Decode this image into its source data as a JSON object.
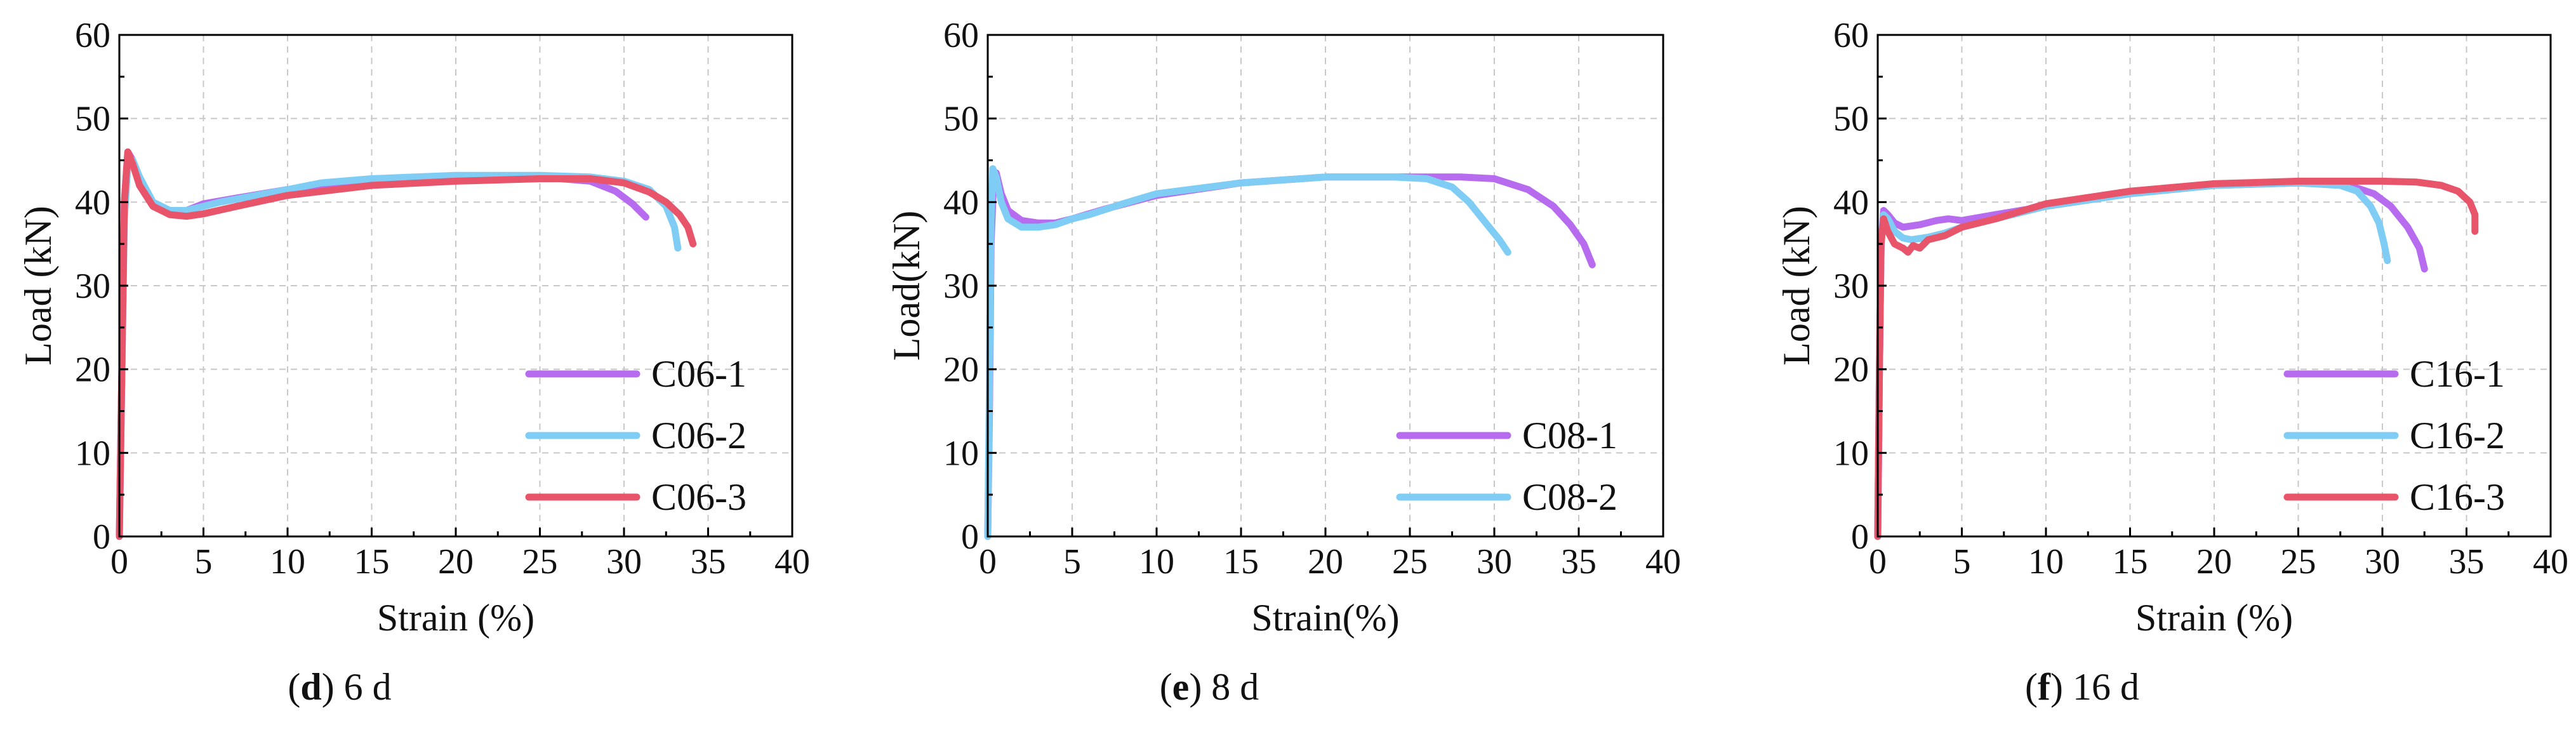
{
  "colors": {
    "purple": "#B76CF0",
    "blue": "#7FCDF5",
    "red": "#E8546A",
    "grid": "#c8c8c8",
    "axis": "#000000"
  },
  "captions": [
    {
      "letter": "d",
      "text": " 6 d"
    },
    {
      "letter": "e",
      "text": " 8 d"
    },
    {
      "letter": "f",
      "text": " 16 d"
    }
  ],
  "chart_data": [
    {
      "type": "line",
      "xlabel": "Strain (%)",
      "ylabel": "Load (kN)",
      "xlim": [
        0,
        40
      ],
      "ylim": [
        0,
        60
      ],
      "xticks": [
        "0",
        "5",
        "10",
        "15",
        "20",
        "25",
        "30",
        "35",
        "40"
      ],
      "yticks": [
        "0",
        "10",
        "20",
        "30",
        "40",
        "50",
        "60"
      ],
      "grid": true,
      "legend_position": "bottom-right",
      "series": [
        {
          "name": "C06-1",
          "color": "#B76CF0",
          "x": [
            0,
            0.15,
            0.3,
            0.5,
            0.8,
            1.2,
            2,
            3,
            4,
            5,
            7,
            10,
            15,
            20,
            25,
            28,
            29.5,
            30.5,
            31.3
          ],
          "y": [
            0,
            20,
            40,
            46,
            45,
            42,
            39.5,
            39,
            39,
            39.8,
            40.5,
            41.5,
            42.5,
            43,
            43,
            42.5,
            41.3,
            39.8,
            38.2
          ]
        },
        {
          "name": "C06-2",
          "color": "#7FCDF5",
          "x": [
            0,
            0.15,
            0.3,
            0.5,
            0.8,
            1.2,
            2,
            3,
            4,
            5,
            6,
            10,
            12,
            15,
            20,
            25,
            28,
            30,
            31.5,
            32.5,
            33,
            33.2
          ],
          "y": [
            0,
            20,
            38,
            44.5,
            45,
            43,
            40,
            39,
            39,
            39.5,
            40,
            41.5,
            42.3,
            42.8,
            43.2,
            43.2,
            43,
            42.5,
            41.5,
            39.5,
            37,
            34.5
          ]
        },
        {
          "name": "C06-3",
          "color": "#E8546A",
          "x": [
            0,
            0.15,
            0.3,
            0.5,
            0.8,
            1.2,
            2,
            3,
            4,
            5,
            7,
            10,
            15,
            20,
            25,
            28,
            30,
            31.5,
            32.5,
            33.3,
            33.8,
            34.1
          ],
          "y": [
            0,
            20,
            40,
            46,
            44.5,
            42,
            39.5,
            38.5,
            38.3,
            38.6,
            39.5,
            40.8,
            42,
            42.5,
            42.8,
            42.8,
            42.3,
            41.2,
            40,
            38.5,
            37,
            35
          ]
        }
      ]
    },
    {
      "type": "line",
      "xlabel": "Strain(%)",
      "ylabel": "Load(kN)",
      "xlim": [
        0,
        40
      ],
      "ylim": [
        0,
        60
      ],
      "xticks": [
        "0",
        "5",
        "10",
        "15",
        "20",
        "25",
        "30",
        "35",
        "40"
      ],
      "yticks": [
        "0",
        "10",
        "20",
        "30",
        "40",
        "50",
        "60"
      ],
      "grid": true,
      "legend_position": "bottom-right",
      "series": [
        {
          "name": "C08-1",
          "color": "#B76CF0",
          "x": [
            0,
            0.1,
            0.2,
            0.35,
            0.5,
            0.8,
            1.2,
            2,
            3,
            4,
            5,
            7,
            10,
            15,
            20,
            25,
            28,
            30,
            32,
            33.5,
            34.5,
            35.3,
            35.8
          ],
          "y": [
            0,
            15,
            35,
            43,
            43.5,
            41,
            39,
            37.8,
            37.5,
            37.5,
            38,
            39.2,
            40.8,
            42.3,
            43,
            43,
            43,
            42.8,
            41.5,
            39.5,
            37.3,
            35,
            32.5
          ]
        },
        {
          "name": "C08-2",
          "color": "#7FCDF5",
          "x": [
            0,
            0.1,
            0.2,
            0.3,
            0.5,
            0.8,
            1.2,
            2,
            3,
            4,
            5,
            6,
            8,
            10,
            15,
            20,
            24,
            26,
            27.5,
            28.5,
            29.5,
            30.3,
            30.8
          ],
          "y": [
            0,
            18,
            38,
            44,
            43,
            40,
            38,
            37,
            37,
            37.3,
            38,
            38.5,
            39.8,
            41,
            42.3,
            43,
            43,
            42.8,
            41.8,
            40,
            37.5,
            35.5,
            34
          ]
        }
      ]
    },
    {
      "type": "line",
      "xlabel": "Strain (%)",
      "ylabel": "Load (kN)",
      "xlim": [
        0,
        40
      ],
      "ylim": [
        0,
        60
      ],
      "xticks": [
        "0",
        "5",
        "10",
        "15",
        "20",
        "25",
        "30",
        "35",
        "40"
      ],
      "yticks": [
        "0",
        "10",
        "20",
        "30",
        "40",
        "50",
        "60"
      ],
      "grid": true,
      "legend_position": "bottom-right",
      "series": [
        {
          "name": "C16-1",
          "color": "#B76CF0",
          "x": [
            0,
            0.1,
            0.2,
            0.35,
            0.6,
            1,
            1.5,
            2.5,
            3.5,
            4.2,
            5,
            7,
            10,
            15,
            20,
            25,
            28,
            29.5,
            30.5,
            31.5,
            32.2,
            32.5
          ],
          "y": [
            0,
            20,
            35,
            39,
            38.5,
            37.5,
            37,
            37.3,
            37.8,
            38,
            37.8,
            38.5,
            39.5,
            41,
            42,
            42.3,
            42,
            41,
            39.5,
            37,
            34.5,
            32
          ]
        },
        {
          "name": "C16-2",
          "color": "#7FCDF5",
          "x": [
            0,
            0.1,
            0.2,
            0.35,
            0.6,
            1,
            1.5,
            2,
            3,
            4,
            5,
            7,
            10,
            15,
            20,
            25,
            27.5,
            28.5,
            29.3,
            29.8,
            30.1,
            30.3
          ],
          "y": [
            0,
            20,
            35,
            38.5,
            38,
            36.5,
            35.7,
            35.5,
            35.8,
            36.3,
            37,
            38,
            39.5,
            41,
            42,
            42.3,
            42,
            41.3,
            39.5,
            37.5,
            35,
            33
          ]
        },
        {
          "name": "C16-3",
          "color": "#E8546A",
          "x": [
            0,
            0.1,
            0.2,
            0.35,
            0.6,
            1,
            1.5,
            1.8,
            2.1,
            2.5,
            3,
            4,
            5,
            7,
            10,
            15,
            20,
            25,
            30,
            32,
            33.5,
            34.5,
            35.2,
            35.5,
            35.5
          ],
          "y": [
            0,
            20,
            35,
            38,
            36.5,
            35,
            34.5,
            34,
            34.8,
            34.5,
            35.5,
            36,
            37,
            38,
            39.8,
            41.3,
            42.2,
            42.5,
            42.5,
            42.4,
            42,
            41.3,
            40,
            38.5,
            36.5
          ]
        }
      ]
    }
  ]
}
